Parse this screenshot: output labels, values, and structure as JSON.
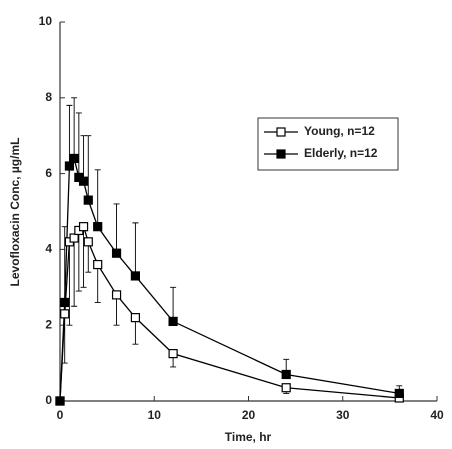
{
  "chart_data": {
    "type": "line",
    "x_label": "Time, hr",
    "y_label": "Levofloxacin Conc, µg/mL",
    "x": [
      0,
      0.5,
      1,
      1.5,
      2,
      2.5,
      3,
      4,
      6,
      8,
      12,
      24,
      36
    ],
    "series": [
      {
        "name": "Young, n=12",
        "color": "#000000",
        "marker_fill": "#ffffff",
        "error_direction": "down",
        "values": [
          0,
          2.3,
          4.2,
          4.3,
          4.5,
          4.6,
          4.2,
          3.6,
          2.8,
          2.2,
          1.25,
          0.35,
          0.08
        ],
        "errors": [
          0,
          1.3,
          2.2,
          1.8,
          1.6,
          1.6,
          0.8,
          1.0,
          0.8,
          0.7,
          0.35,
          0.15,
          0.05
        ]
      },
      {
        "name": "Elderly, n=12",
        "color": "#000000",
        "marker_fill": "#000000",
        "error_direction": "up",
        "values": [
          0,
          2.6,
          6.2,
          6.4,
          5.9,
          5.8,
          5.3,
          4.6,
          3.9,
          3.3,
          2.1,
          0.7,
          0.2
        ],
        "errors": [
          0,
          2.0,
          1.6,
          1.6,
          1.7,
          1.2,
          1.7,
          1.5,
          1.3,
          1.4,
          0.9,
          0.4,
          0.2
        ]
      }
    ],
    "xlim": [
      0,
      40
    ],
    "xticks": [
      0,
      10,
      20,
      30,
      40
    ],
    "ylim": [
      0,
      10
    ],
    "yticks": [
      0,
      2,
      4,
      6,
      8,
      10
    ],
    "legend": "upper right",
    "grid": false
  }
}
